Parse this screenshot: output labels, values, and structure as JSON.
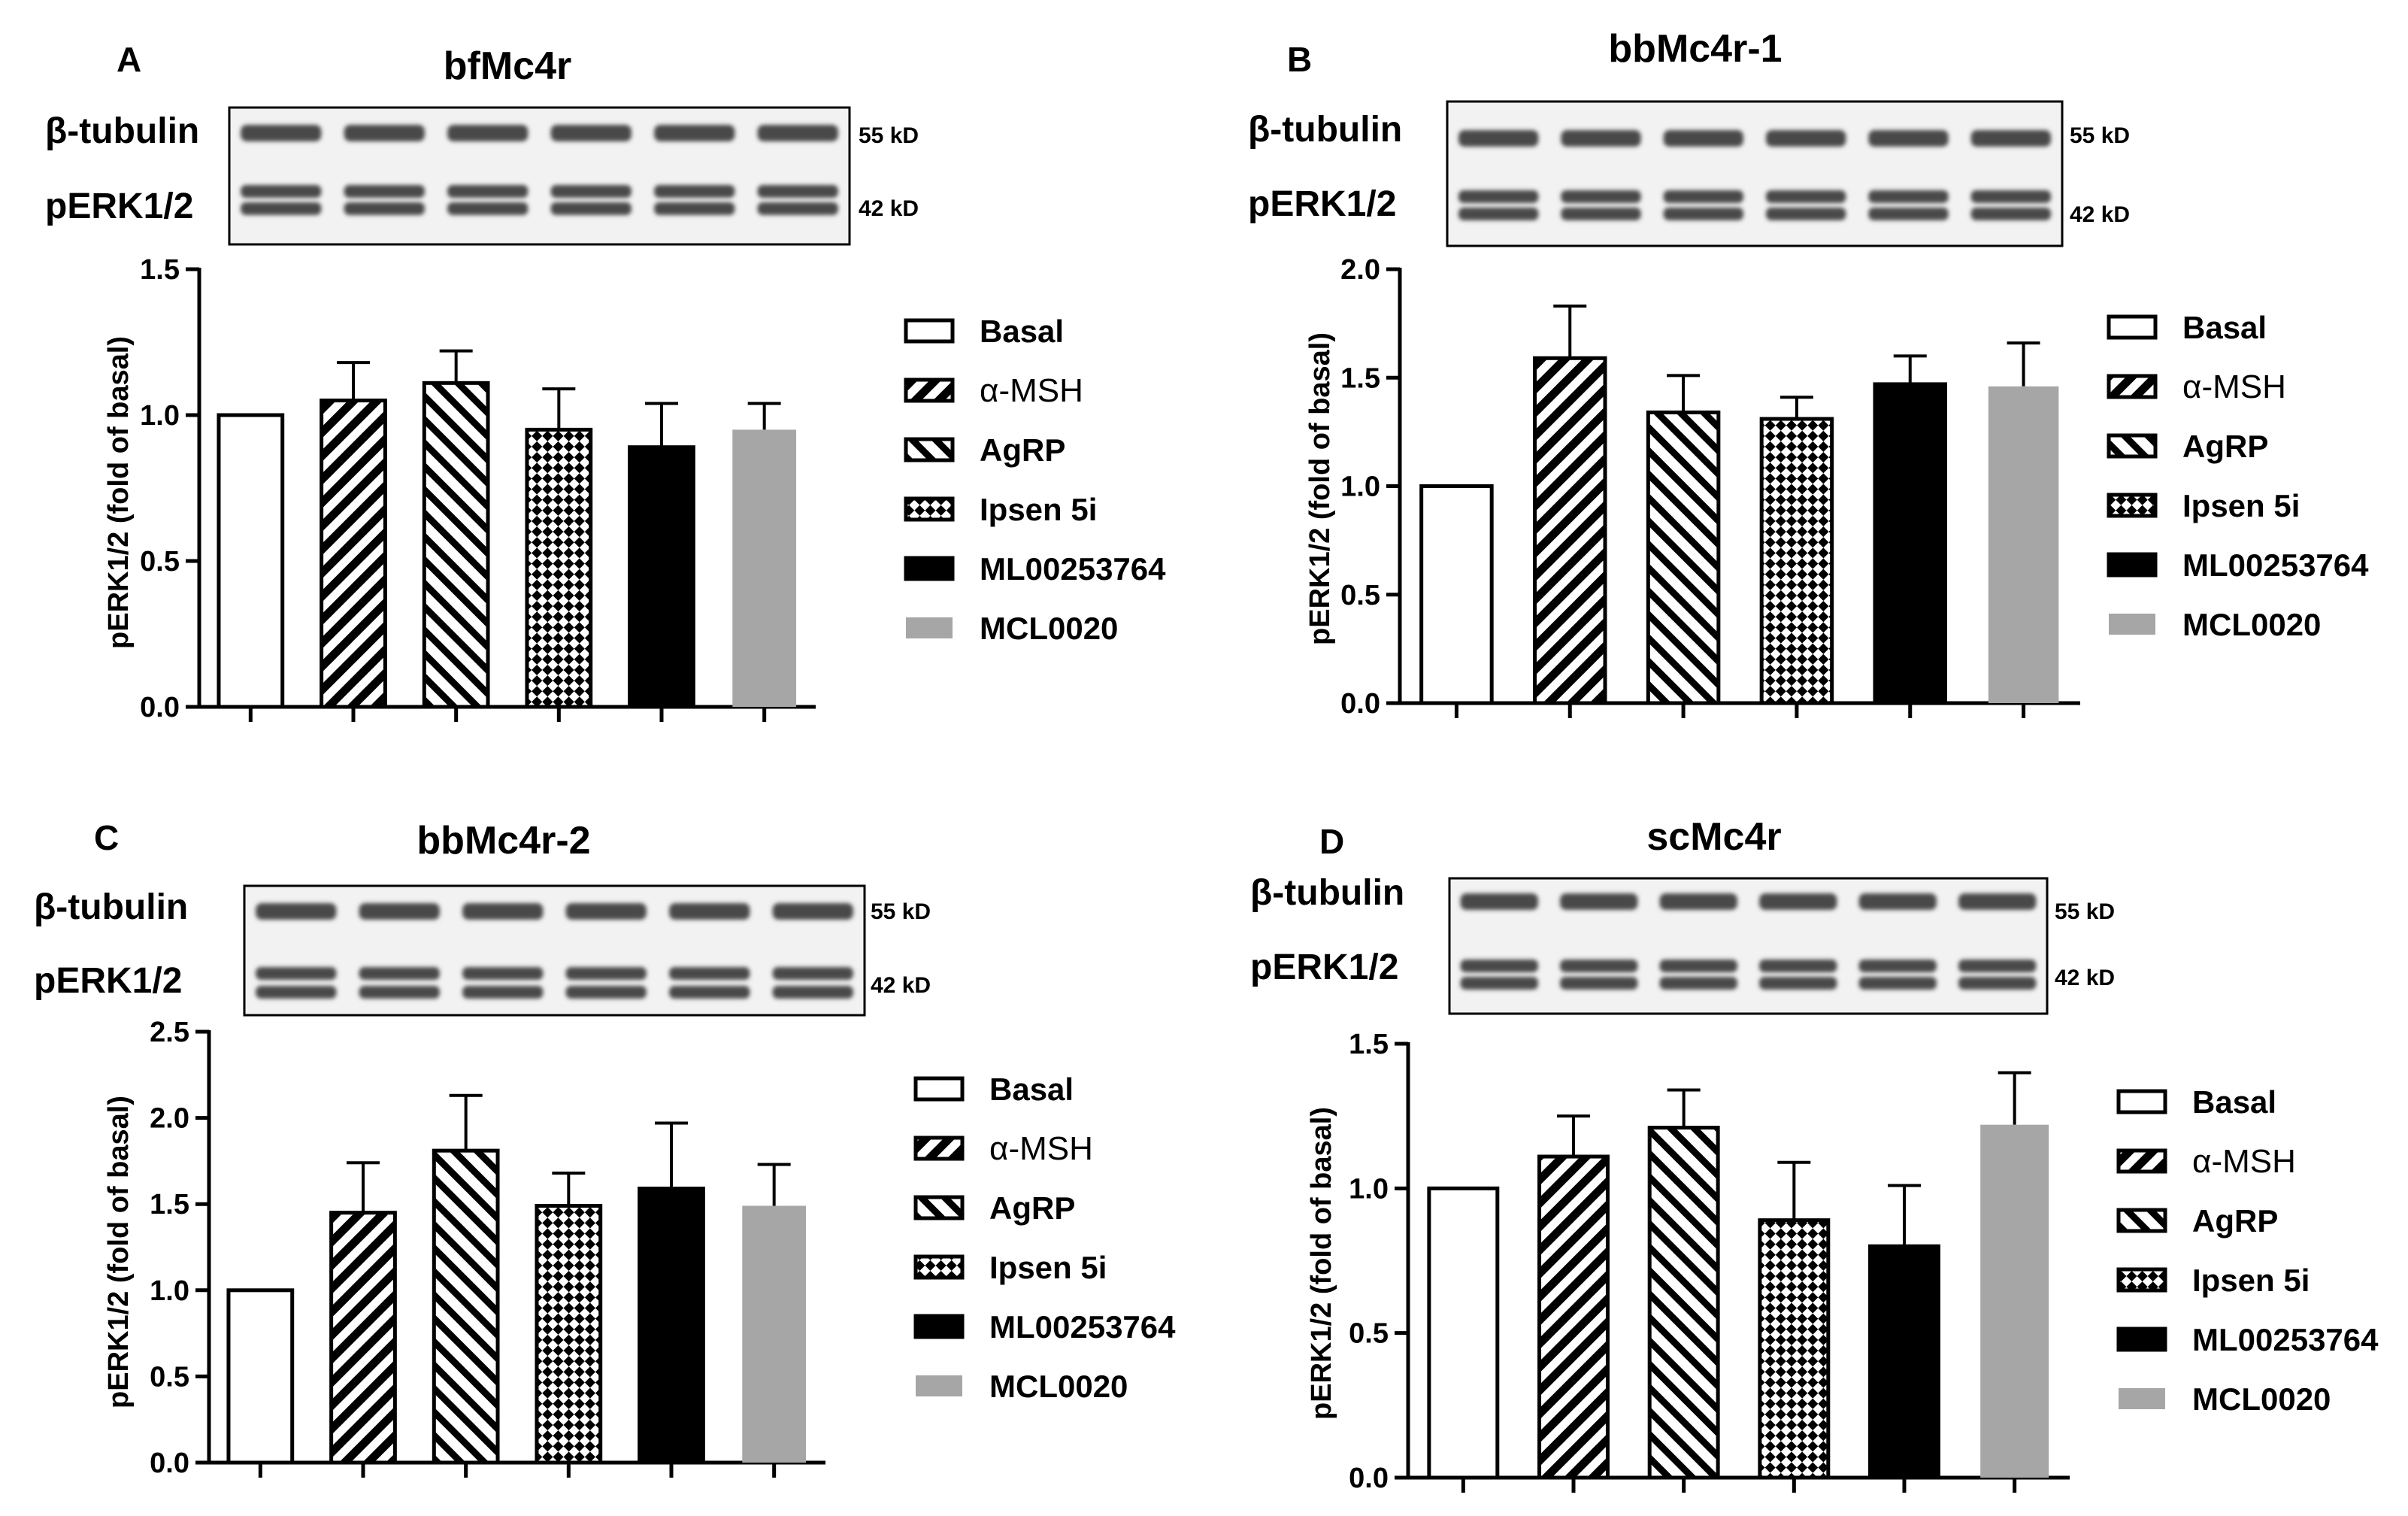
{
  "figure": {
    "blot_labels": {
      "tubulin": "β-tubulin",
      "perk": "pERK1/2"
    },
    "kd_labels": {
      "tubulin": "55 kD",
      "perk": "42 kD"
    },
    "legend": [
      "Basal",
      "α-MSH",
      "AgRP",
      "Ipsen 5i",
      "ML00253764",
      "MCL0020"
    ],
    "colors": {
      "black": "#000000",
      "gray": "#a6a6a6",
      "white": "#ffffff",
      "blot_bg": "#f2f2f2",
      "band": "#4a4a4a"
    }
  },
  "chart_data": [
    {
      "type": "bar",
      "panel": "A",
      "title": "bfMc4r",
      "ylabel": "pERK1/2 (fold of basal)",
      "ylim": [
        0,
        1.5
      ],
      "yticks": [
        "0.0",
        "0.5",
        "1.0",
        "1.5"
      ],
      "categories": [
        "Basal",
        "α-MSH",
        "AgRP",
        "Ipsen 5i",
        "ML00253764",
        "MCL0020"
      ],
      "values": [
        1.0,
        1.05,
        1.11,
        0.95,
        0.89,
        0.95
      ],
      "errors": [
        0,
        0.13,
        0.11,
        0.14,
        0.15,
        0.09
      ]
    },
    {
      "type": "bar",
      "panel": "B",
      "title": "bbMc4r-1",
      "ylabel": "pERK1/2 (fold of basal)",
      "ylim": [
        0,
        2.0
      ],
      "yticks": [
        "0.0",
        "0.5",
        "1.0",
        "1.5",
        "2.0"
      ],
      "categories": [
        "Basal",
        "α-MSH",
        "AgRP",
        "Ipsen 5i",
        "ML00253764",
        "MCL0020"
      ],
      "values": [
        1.0,
        1.59,
        1.34,
        1.31,
        1.47,
        1.46
      ],
      "errors": [
        0,
        0.24,
        0.17,
        0.1,
        0.13,
        0.2
      ]
    },
    {
      "type": "bar",
      "panel": "C",
      "title": "bbMc4r-2",
      "ylabel": "pERK1/2 (fold of basal)",
      "ylim": [
        0,
        2.5
      ],
      "yticks": [
        "0.0",
        "0.5",
        "1.0",
        "1.5",
        "2.0",
        "2.5"
      ],
      "categories": [
        "Basal",
        "α-MSH",
        "AgRP",
        "Ipsen 5i",
        "ML00253764",
        "MCL0020"
      ],
      "values": [
        1.0,
        1.45,
        1.81,
        1.49,
        1.59,
        1.49
      ],
      "errors": [
        0,
        0.29,
        0.32,
        0.19,
        0.38,
        0.24
      ]
    },
    {
      "type": "bar",
      "panel": "D",
      "title": "scMc4r",
      "ylabel": "pERK1/2 (fold of basal)",
      "ylim": [
        0,
        1.5
      ],
      "yticks": [
        "0.0",
        "0.5",
        "1.0",
        "1.5"
      ],
      "categories": [
        "Basal",
        "α-MSH",
        "AgRP",
        "Ipsen 5i",
        "ML00253764",
        "MCL0020"
      ],
      "values": [
        1.0,
        1.11,
        1.21,
        0.89,
        0.8,
        1.22
      ],
      "errors": [
        0,
        0.14,
        0.13,
        0.2,
        0.21,
        0.18
      ]
    }
  ]
}
